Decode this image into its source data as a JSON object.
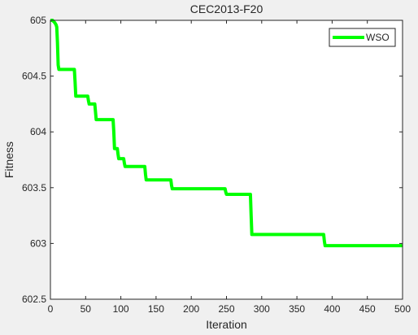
{
  "chart_data": {
    "type": "line",
    "title": "CEC2013-F20",
    "xlabel": "Iteration",
    "ylabel": "Fitness",
    "xlim": [
      0,
      500
    ],
    "ylim": [
      602.5,
      605
    ],
    "xticks": [
      0,
      50,
      100,
      150,
      200,
      250,
      300,
      350,
      400,
      450,
      500
    ],
    "yticks": [
      602.5,
      603,
      603.5,
      604,
      604.5,
      605
    ],
    "ytick_labels": [
      "602.5",
      "603",
      "603.5",
      "604",
      "604.5",
      "605"
    ],
    "grid": false,
    "legend_position": "top-right",
    "series": [
      {
        "name": "WSO",
        "color": "#00ff00",
        "x": [
          0,
          3,
          6,
          8,
          9,
          10,
          11,
          12,
          34,
          35,
          36,
          53,
          54,
          55,
          63,
          64,
          65,
          89,
          90,
          91,
          95,
          96,
          97,
          104,
          105,
          106,
          134,
          135,
          136,
          171,
          172,
          173,
          248,
          249,
          250,
          284,
          285,
          286,
          388,
          389,
          390,
          500
        ],
        "y": [
          605,
          605,
          604.98,
          604.96,
          604.94,
          604.8,
          604.6,
          604.56,
          604.56,
          604.45,
          604.32,
          604.32,
          604.28,
          604.25,
          604.25,
          604.18,
          604.11,
          604.11,
          604.0,
          603.85,
          603.85,
          603.8,
          603.76,
          603.76,
          603.72,
          603.69,
          603.69,
          603.62,
          603.57,
          603.57,
          603.52,
          603.49,
          603.49,
          603.46,
          603.44,
          603.44,
          603.25,
          603.08,
          603.08,
          603.02,
          602.98,
          602.98
        ]
      }
    ]
  }
}
